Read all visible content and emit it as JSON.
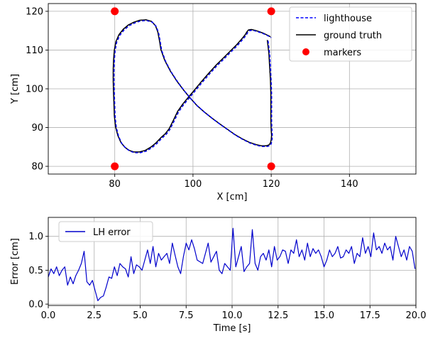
{
  "chart_data": [
    {
      "type": "line",
      "title": "",
      "xlabel": "X [cm]",
      "ylabel": "Y [cm]",
      "xlim": [
        63,
        157
      ],
      "ylim": [
        78,
        122
      ],
      "xticks": [
        80,
        100,
        120,
        140
      ],
      "yticks": [
        80,
        90,
        100,
        110,
        120
      ],
      "grid": true,
      "legend_position": "top-right",
      "series": [
        {
          "name": "lighthouse",
          "style": "dashed",
          "color": "#0000ff",
          "x": [
            119.2,
            119.6,
            119.8,
            120.0,
            120.1,
            120.1,
            120.1,
            120.2,
            120.3,
            120.2,
            120.0,
            119.6,
            118.9,
            117.7,
            116.3,
            114.6,
            112.8,
            110.9,
            109.1,
            107.1,
            105.1,
            103.1,
            101.2,
            99.4,
            97.7,
            96.0,
            94.4,
            93.0,
            92.0,
            91.6,
            91.2,
            90.6,
            89.6,
            88.2,
            86.6,
            85.1,
            83.7,
            82.4,
            81.3,
            80.5,
            80.1,
            79.9,
            79.8,
            79.8,
            79.9,
            80.0,
            80.1,
            80.4,
            81.0,
            81.8,
            82.8,
            83.9,
            85.1,
            86.5,
            88.0,
            89.5,
            90.8,
            92.0,
            93.1,
            94.1,
            95.2,
            96.3,
            97.6,
            99.0,
            100.6,
            102.3,
            104.2,
            106.1,
            108.0,
            109.8,
            111.4,
            112.6,
            113.5,
            114.0,
            114.4,
            115.1,
            116.0,
            117.0,
            118.3,
            119.7,
            120.0
          ],
          "y": [
            112.4,
            109.0,
            105.5,
            102.0,
            98.5,
            95.0,
            91.5,
            89.0,
            87.8,
            86.7,
            85.8,
            85.3,
            85.1,
            85.1,
            85.4,
            86.0,
            86.9,
            88.0,
            89.3,
            90.7,
            92.2,
            93.8,
            95.5,
            97.5,
            99.6,
            101.9,
            104.4,
            107.1,
            109.9,
            112.4,
            114.5,
            116.1,
            117.2,
            117.6,
            117.5,
            117.0,
            116.3,
            115.2,
            113.8,
            112.0,
            109.8,
            107.3,
            104.8,
            101.8,
            98.5,
            95.6,
            92.8,
            90.0,
            87.7,
            85.9,
            84.7,
            83.9,
            83.5,
            83.5,
            83.9,
            84.8,
            85.9,
            87.2,
            88.2,
            89.5,
            91.7,
            94.0,
            95.9,
            97.6,
            99.5,
            101.6,
            103.8,
            105.9,
            107.8,
            109.6,
            111.2,
            112.6,
            113.7,
            114.5,
            115.0,
            115.1,
            114.9,
            114.6,
            114.1,
            113.4,
            113.2
          ]
        },
        {
          "name": "ground truth",
          "style": "solid",
          "color": "#000000",
          "x": [
            119.0,
            119.4,
            119.6,
            119.8,
            119.9,
            119.9,
            119.9,
            120.0,
            120.1,
            120.0,
            119.8,
            119.4,
            118.7,
            117.5,
            116.1,
            114.4,
            112.6,
            110.7,
            108.9,
            106.9,
            104.9,
            102.9,
            101.0,
            99.2,
            97.5,
            95.8,
            94.2,
            92.8,
            91.8,
            91.4,
            91.0,
            90.4,
            89.4,
            88.0,
            86.4,
            84.9,
            83.5,
            82.2,
            81.1,
            80.3,
            79.9,
            79.7,
            79.6,
            79.6,
            79.7,
            79.8,
            79.9,
            80.2,
            80.8,
            81.6,
            82.6,
            83.7,
            84.9,
            86.3,
            87.8,
            89.3,
            90.6,
            91.8,
            92.9,
            93.9,
            95.0,
            96.1,
            97.4,
            98.8,
            100.4,
            102.1,
            104.0,
            105.9,
            107.8,
            109.6,
            111.2,
            112.4,
            113.3,
            113.8,
            114.2,
            114.9,
            115.8,
            116.8,
            118.1,
            119.5,
            119.8
          ],
          "y": [
            112.6,
            109.2,
            105.7,
            102.2,
            98.7,
            95.2,
            91.7,
            89.2,
            88.0,
            86.9,
            86.0,
            85.5,
            85.3,
            85.3,
            85.6,
            86.2,
            87.1,
            88.2,
            89.5,
            90.9,
            92.4,
            94.0,
            95.7,
            97.7,
            99.8,
            102.1,
            104.6,
            107.3,
            110.1,
            112.6,
            114.7,
            116.3,
            117.4,
            117.8,
            117.7,
            117.2,
            116.5,
            115.4,
            114.0,
            112.2,
            110.0,
            107.5,
            105.0,
            102.0,
            98.7,
            95.8,
            93.0,
            90.2,
            87.9,
            86.1,
            84.9,
            84.1,
            83.7,
            83.7,
            84.1,
            85.0,
            86.1,
            87.4,
            88.4,
            89.7,
            91.9,
            94.2,
            96.1,
            97.8,
            99.7,
            101.8,
            104.0,
            106.1,
            108.0,
            109.8,
            111.4,
            112.8,
            113.9,
            114.7,
            115.2,
            115.3,
            115.1,
            114.8,
            114.3,
            113.6,
            113.4
          ]
        },
        {
          "name": "markers",
          "style": "scatter",
          "color": "#ff0000",
          "x": [
            80,
            120,
            80,
            120
          ],
          "y": [
            120,
            120,
            80,
            80
          ]
        }
      ]
    },
    {
      "type": "line",
      "title": "",
      "xlabel": "Time [s]",
      "ylabel": "Error [cm]",
      "xlim": [
        0,
        20
      ],
      "ylim": [
        -0.02,
        1.28
      ],
      "xticks": [
        0.0,
        2.5,
        5.0,
        7.5,
        10.0,
        12.5,
        15.0,
        17.5,
        20.0
      ],
      "xtick_labels": [
        "0.0",
        "2.5",
        "5.0",
        "7.5",
        "10.0",
        "12.5",
        "15.0",
        "17.5",
        "20.0"
      ],
      "yticks": [
        0.0,
        0.5,
        1.0
      ],
      "ytick_labels": [
        "0.0",
        "0.5",
        "1.0"
      ],
      "grid": true,
      "legend_position": "top-left",
      "series": [
        {
          "name": "LH error",
          "color": "#0000cc",
          "x": [
            0.0,
            0.15,
            0.3,
            0.45,
            0.6,
            0.75,
            0.9,
            1.05,
            1.2,
            1.35,
            1.5,
            1.65,
            1.8,
            1.95,
            2.1,
            2.25,
            2.4,
            2.55,
            2.7,
            2.85,
            3.0,
            3.15,
            3.3,
            3.45,
            3.6,
            3.75,
            3.9,
            4.05,
            4.2,
            4.35,
            4.5,
            4.65,
            4.8,
            4.95,
            5.1,
            5.25,
            5.4,
            5.55,
            5.7,
            5.85,
            6.0,
            6.15,
            6.3,
            6.45,
            6.6,
            6.75,
            6.9,
            7.05,
            7.2,
            7.35,
            7.5,
            7.65,
            7.8,
            7.95,
            8.1,
            8.4,
            8.7,
            8.85,
            9.0,
            9.15,
            9.3,
            9.45,
            9.6,
            9.75,
            9.9,
            10.05,
            10.2,
            10.35,
            10.5,
            10.65,
            10.8,
            10.95,
            11.1,
            11.25,
            11.4,
            11.55,
            11.7,
            11.85,
            12.0,
            12.15,
            12.3,
            12.45,
            12.6,
            12.75,
            12.9,
            13.05,
            13.2,
            13.35,
            13.5,
            13.65,
            13.8,
            13.95,
            14.1,
            14.25,
            14.4,
            14.55,
            14.7,
            14.85,
            15.0,
            15.15,
            15.3,
            15.45,
            15.6,
            15.75,
            15.9,
            16.05,
            16.2,
            16.35,
            16.5,
            16.65,
            16.8,
            16.95,
            17.1,
            17.25,
            17.4,
            17.55,
            17.7,
            17.85,
            18.0,
            18.15,
            18.3,
            18.45,
            18.6,
            18.75,
            18.9,
            19.05,
            19.2,
            19.35,
            19.5,
            19.65,
            19.8,
            19.95
          ],
          "values": [
            0.4,
            0.52,
            0.45,
            0.55,
            0.42,
            0.5,
            0.55,
            0.28,
            0.4,
            0.3,
            0.42,
            0.5,
            0.6,
            0.78,
            0.33,
            0.28,
            0.35,
            0.2,
            0.05,
            0.1,
            0.12,
            0.25,
            0.4,
            0.38,
            0.55,
            0.42,
            0.6,
            0.55,
            0.52,
            0.4,
            0.7,
            0.45,
            0.58,
            0.55,
            0.5,
            0.65,
            0.8,
            0.6,
            0.85,
            0.55,
            0.75,
            0.65,
            0.7,
            0.75,
            0.6,
            0.9,
            0.72,
            0.55,
            0.45,
            0.7,
            0.9,
            0.8,
            0.95,
            0.82,
            0.65,
            0.6,
            0.9,
            0.62,
            0.7,
            0.78,
            0.5,
            0.45,
            0.6,
            0.55,
            0.5,
            1.12,
            0.55,
            0.7,
            0.85,
            0.48,
            0.55,
            0.6,
            1.1,
            0.6,
            0.5,
            0.7,
            0.75,
            0.65,
            0.8,
            0.55,
            0.85,
            0.65,
            0.7,
            0.8,
            0.78,
            0.6,
            0.8,
            0.75,
            0.95,
            0.7,
            0.8,
            0.65,
            0.9,
            0.7,
            0.82,
            0.75,
            0.8,
            0.7,
            0.55,
            0.65,
            0.8,
            0.7,
            0.75,
            0.85,
            0.68,
            0.7,
            0.8,
            0.75,
            0.85,
            0.6,
            0.75,
            0.7,
            0.98,
            0.75,
            0.85,
            0.7,
            1.05,
            0.8,
            0.85,
            0.75,
            0.9,
            0.8,
            0.85,
            0.65,
            1.0,
            0.85,
            0.7,
            0.8,
            0.65,
            0.85,
            0.78,
            0.52
          ]
        }
      ]
    }
  ]
}
